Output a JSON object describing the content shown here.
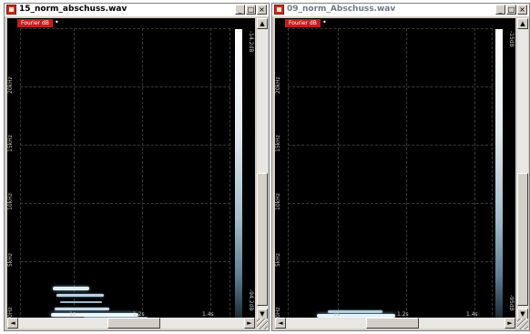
{
  "windows": [
    {
      "title": "15_norm_abschuss.wav",
      "active": true,
      "tag": "Fourier dB",
      "tag_extra": "•",
      "y_ticks": [
        "0Hz",
        "5kHz",
        "10kHz",
        "15kHz",
        "20kHz"
      ],
      "x_ticks": [
        "1s",
        "1.2s",
        "1.4s"
      ],
      "colorbar_top": "-14.2dB",
      "colorbar_bottom": "-94.2dB",
      "buttons": {
        "minimize": "_",
        "maximize": "□",
        "close": "×"
      },
      "scroll": {
        "up": "▲",
        "down": "▼",
        "left": "◄",
        "right": "►"
      }
    },
    {
      "title": "09_norm_Abschuss.wav",
      "active": false,
      "tag": "Fourier dB",
      "tag_extra": "•",
      "y_ticks": [
        "0Hz",
        "5kHz",
        "10kHz",
        "15kHz",
        "20kHz"
      ],
      "x_ticks": [
        "1s",
        "1.2s",
        "1.4s"
      ],
      "colorbar_top": "-15dB",
      "colorbar_bottom": "-95dB",
      "buttons": {
        "minimize": "_",
        "maximize": "□",
        "close": "×"
      },
      "scroll": {
        "up": "▲",
        "down": "▼",
        "left": "◄",
        "right": "►"
      }
    }
  ],
  "colors": {
    "tag": "#c41d1d",
    "plot_bg": "#000000",
    "window_frame": "#d4d0c8",
    "spectrum_hot": "#e8f4ff"
  }
}
